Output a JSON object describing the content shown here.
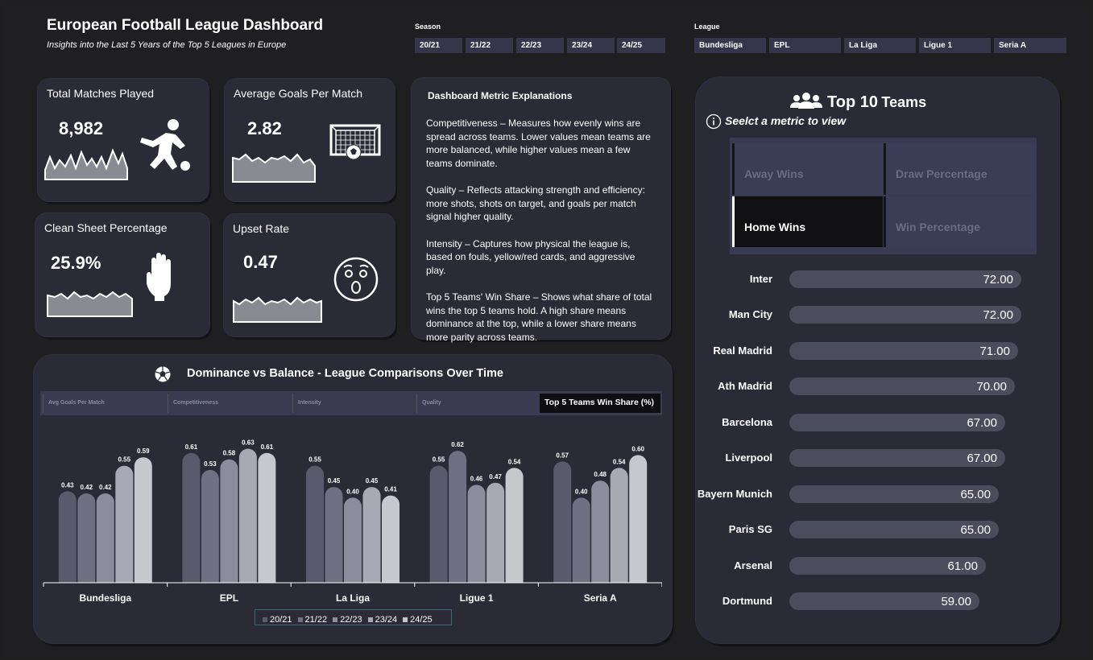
{
  "header": {
    "title": "European Football League Dashboard",
    "subtitle": "Insights into the Last 5 Years of the Top 5 Leagues in Europe"
  },
  "season_slicer": {
    "label": "Season",
    "options": [
      "20/21",
      "21/22",
      "22/23",
      "23/24",
      "24/25"
    ]
  },
  "league_slicer": {
    "label": "League",
    "options": [
      "Bundesliga",
      "EPL",
      "La Liga",
      "Ligue 1",
      "Seria A"
    ]
  },
  "kpis": {
    "matches": {
      "title": "Total Matches Played",
      "value": "8,982",
      "icon": "kicker-icon"
    },
    "goals": {
      "title": "Average Goals Per Match",
      "value": "2.82",
      "icon": "goal-net-icon"
    },
    "clean": {
      "title": "Clean Sheet Percentage",
      "value": "25.9%",
      "icon": "glove-icon"
    },
    "upset": {
      "title": "Upset Rate",
      "value": "0.47",
      "icon": "surprised-face-icon"
    }
  },
  "explanations": {
    "title": "Dashboard Metric Explanations",
    "p1": "Competitiveness – Measures how evenly wins are spread across teams. Lower values mean teams are more balanced, while higher values mean a few teams dominate.",
    "p2": "Quality – Reflects attacking strength and efficiency: more shots, shots on target, and goals per match signal higher quality.",
    "p3": "Intensity – Captures how physical the league is, based on fouls, yellow/red cards, and aggressive play.",
    "p4": "Top 5 Teams' Win Share – Shows what share of total wins the top 5 teams hold. A high share means dominance at the top, while a lower share means more parity across teams."
  },
  "top_teams": {
    "title_icon": "users-icon",
    "title_a": "Top 10",
    "title_b": "Teams",
    "hint_icon": "info-icon",
    "hint": "Seelct a metric to view",
    "metrics": [
      "Away Wins",
      "Draw Percentage",
      "Home Wins",
      "Win Percentage"
    ],
    "selected_metric": "Home Wins",
    "teams": [
      {
        "name": "Inter",
        "value": "72.00"
      },
      {
        "name": "Man City",
        "value": "72.00"
      },
      {
        "name": "Real Madrid",
        "value": "71.00"
      },
      {
        "name": "Ath Madrid",
        "value": "70.00"
      },
      {
        "name": "Barcelona",
        "value": "67.00"
      },
      {
        "name": "Liverpool",
        "value": "67.00"
      },
      {
        "name": "Bayern Munich",
        "value": "65.00"
      },
      {
        "name": "Paris SG",
        "value": "65.00"
      },
      {
        "name": "Arsenal",
        "value": "61.00"
      },
      {
        "name": "Dortmund",
        "value": "59.00"
      }
    ]
  },
  "comparison": {
    "title": "Dominance vs Balance - League Comparisons Over Time",
    "icon": "soccer-ball-icon",
    "tabs": [
      "Avg Goals Per Match",
      "Competitiveness",
      "Intensity",
      "Quality",
      "Top 5 Teams Win Share (%)"
    ],
    "selected_tab": "Top 5 Teams Win Share (%)"
  },
  "colors": {
    "bg": "#1f1f21",
    "card": "#2a2b37",
    "series": [
      "#5a5a6c",
      "#707082",
      "#8c8c9c",
      "#a9a9b6",
      "#c7c7cf"
    ]
  },
  "chart_data": {
    "type": "bar",
    "categories": [
      "Bundesliga",
      "EPL",
      "La Liga",
      "Ligue 1",
      "Seria A"
    ],
    "series": [
      {
        "name": "20/21",
        "values": [
          0.43,
          0.61,
          0.55,
          0.55,
          0.57
        ]
      },
      {
        "name": "21/22",
        "values": [
          0.42,
          0.53,
          0.45,
          0.62,
          0.4
        ]
      },
      {
        "name": "22/23",
        "values": [
          0.42,
          0.58,
          0.4,
          0.46,
          0.48
        ]
      },
      {
        "name": "23/24",
        "values": [
          0.55,
          0.63,
          0.45,
          0.47,
          0.54
        ]
      },
      {
        "name": "24/25",
        "values": [
          0.59,
          0.61,
          0.41,
          0.54,
          0.6
        ]
      }
    ],
    "labels": [
      [
        "0.43",
        "0.61",
        "0.55",
        "0.55",
        "0.57"
      ],
      [
        "0.42",
        "0.53",
        "0.45",
        "0.62",
        "0.40"
      ],
      [
        "0.42",
        "0.58",
        "0.40",
        "0.46",
        "0.48"
      ],
      [
        "0.55",
        "0.63",
        "0.45",
        "0.47",
        "0.54"
      ],
      [
        "0.59",
        "0.61",
        "0.41",
        "0.54",
        "0.60"
      ]
    ],
    "ylim": [
      0,
      0.7
    ],
    "legend": "bottom"
  }
}
